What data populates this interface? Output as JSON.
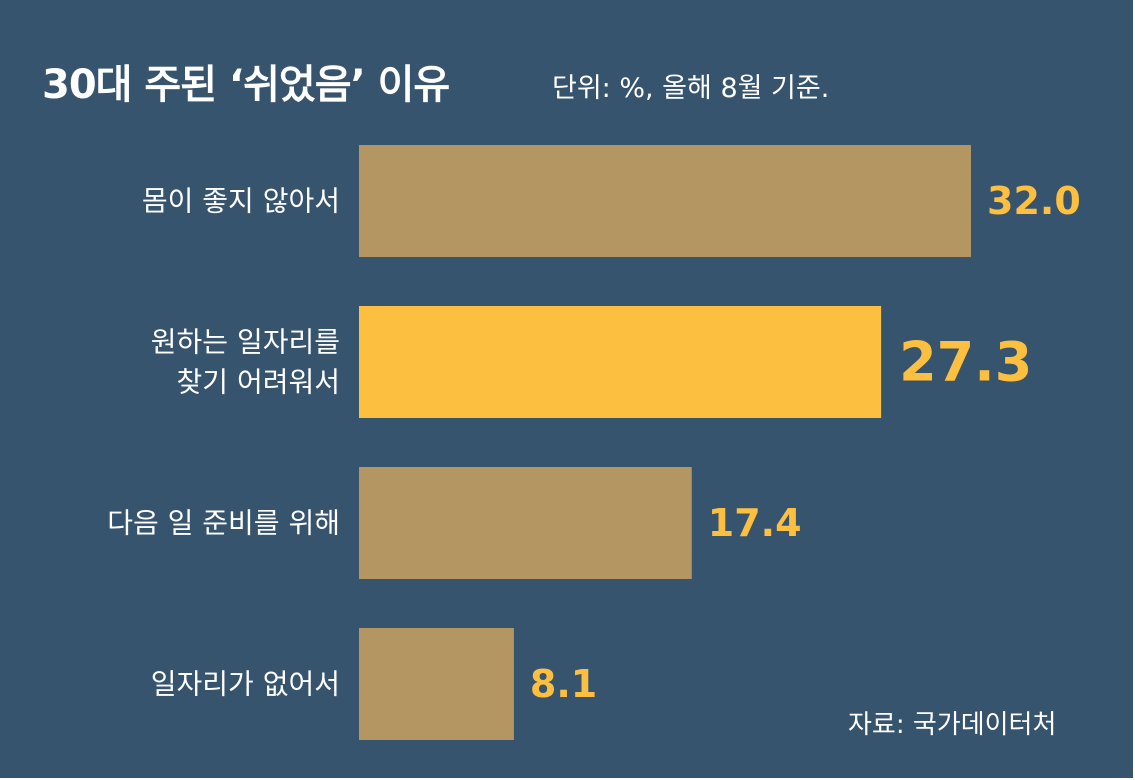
{
  "colors": {
    "background": "#37546f",
    "bar": "#b39662",
    "bar_highlight": "#fdbf40",
    "value_text": "#fdbf40",
    "text": "#ffffff"
  },
  "chart_data": {
    "type": "bar",
    "orientation": "horizontal",
    "title": "30대 주된 ‘쉬었음’ 이유",
    "subtitle": "단위: %, 올해 8월 기준.",
    "source": "자료: 국가데이터처",
    "categories": [
      [
        "몸이 좋지 않아서"
      ],
      [
        "원하는 일자리를",
        "찾기 어려워서"
      ],
      [
        "다음 일 준비를 위해"
      ],
      [
        "일자리가 없어서"
      ]
    ],
    "values": [
      32.0,
      27.3,
      17.4,
      8.1
    ],
    "value_labels": [
      "32.0",
      "27.3",
      "17.4",
      "8.1"
    ],
    "highlight_index": 1,
    "xlim": [
      0,
      32.0
    ],
    "grid": false,
    "legend": "none"
  }
}
